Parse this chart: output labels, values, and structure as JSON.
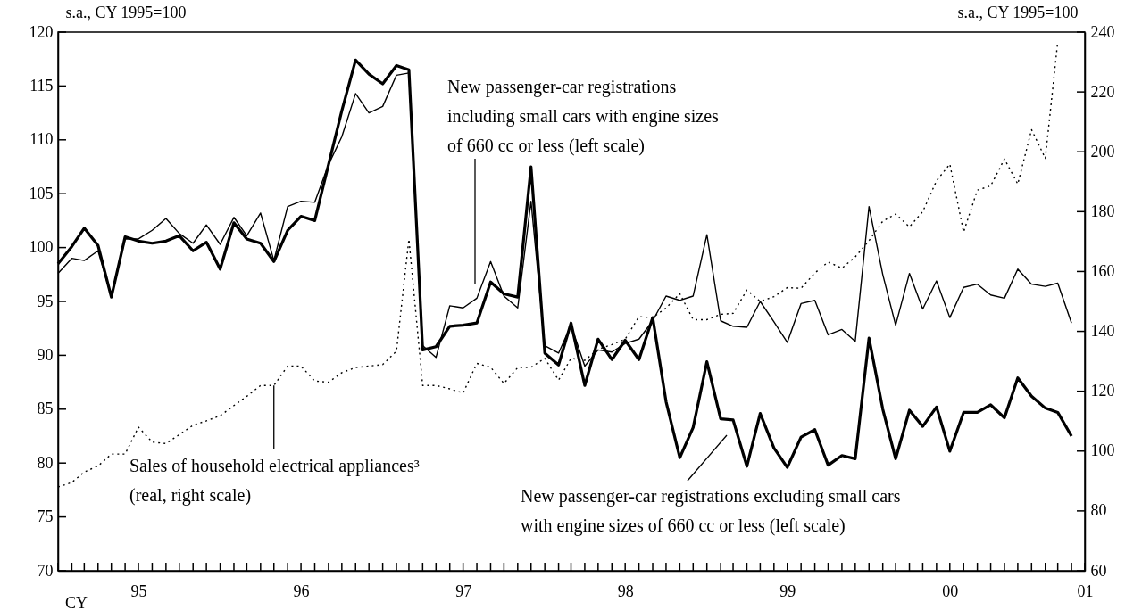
{
  "chart_data": {
    "type": "line",
    "xlabel": "CY",
    "ylabel": "s.a., CY 1995=100",
    "y2label": "s.a., CY 1995=100",
    "x": [
      "1995-01",
      "1995-02",
      "1995-03",
      "1995-04",
      "1995-05",
      "1995-06",
      "1995-07",
      "1995-08",
      "1995-09",
      "1995-10",
      "1995-11",
      "1995-12",
      "1996-01",
      "1996-02",
      "1996-03",
      "1996-04",
      "1996-05",
      "1996-06",
      "1996-07",
      "1996-08",
      "1996-09",
      "1996-10",
      "1996-11",
      "1996-12",
      "1997-01",
      "1997-02",
      "1997-03",
      "1997-04",
      "1997-05",
      "1997-06",
      "1997-07",
      "1997-08",
      "1997-09",
      "1997-10",
      "1997-11",
      "1997-12",
      "1998-01",
      "1998-02",
      "1998-03",
      "1998-04",
      "1998-05",
      "1998-06",
      "1998-07",
      "1998-08",
      "1998-09",
      "1998-10",
      "1998-11",
      "1998-12",
      "1999-01",
      "1999-02",
      "1999-03",
      "1999-04",
      "1999-05",
      "1999-06",
      "1999-07",
      "1999-08",
      "1999-09",
      "1999-10",
      "1999-11",
      "1999-12",
      "2000-01",
      "2000-02",
      "2000-03",
      "2000-04",
      "2000-05",
      "2000-06",
      "2000-07",
      "2000-08",
      "2000-09",
      "2000-10",
      "2000-11",
      "2000-12",
      "2001-01",
      "2001-02",
      "2001-03",
      "2001-04"
    ],
    "series": [
      {
        "color": "#000000",
        "values": [
          98.5,
          100.1,
          101.8,
          100.2,
          95.4,
          101.0,
          100.6,
          100.4,
          100.6,
          101.1,
          99.7,
          100.5,
          98.0,
          102.3,
          100.8,
          100.4,
          98.7,
          101.6,
          102.9,
          102.5,
          107.7,
          112.7,
          117.4,
          116.1,
          115.2,
          116.9,
          116.5,
          90.5,
          90.8,
          92.7,
          92.8,
          93.0,
          96.8,
          95.7,
          95.4,
          107.5,
          90.2,
          89.1,
          93.0,
          87.2,
          91.5,
          89.6,
          91.4,
          89.6,
          93.5,
          85.7,
          80.5,
          83.3,
          89.4,
          84.1,
          84.0,
          79.7,
          84.6,
          81.4,
          79.6,
          82.4,
          83.1,
          79.8,
          80.7,
          80.4,
          91.6,
          85.0,
          80.4,
          84.9,
          83.4,
          85.2,
          81.1,
          84.7,
          84.7,
          85.4,
          84.2,
          87.9,
          86.2,
          85.1,
          84.7,
          82.5
        ]
      },
      {
        "color": "#000000",
        "values": [
          97.6,
          99.0,
          98.8,
          99.7,
          95.4,
          100.8,
          100.8,
          101.6,
          102.7,
          101.3,
          100.4,
          102.1,
          100.3,
          102.8,
          101.1,
          103.2,
          98.8,
          103.8,
          104.3,
          104.2,
          107.7,
          110.3,
          114.3,
          112.5,
          113.1,
          116.0,
          116.2,
          90.9,
          89.8,
          94.6,
          94.4,
          95.3,
          98.7,
          95.5,
          94.4,
          104.3,
          90.9,
          90.2,
          92.8,
          89.0,
          90.5,
          90.3,
          91.1,
          91.5,
          93.2,
          95.5,
          95.1,
          95.5,
          101.2,
          93.2,
          92.7,
          92.6,
          95.0,
          93.1,
          91.2,
          94.8,
          95.1,
          91.9,
          92.4,
          91.3,
          103.8,
          97.5,
          92.8,
          97.6,
          94.3,
          96.9,
          93.5,
          96.3,
          96.6,
          95.6,
          95.3,
          98.0,
          96.6,
          96.4,
          96.7,
          93.0
        ]
      },
      {
        "color": "#000000",
        "axis": "y2",
        "line_style": "dotted",
        "values": [
          88,
          89.5,
          93,
          95,
          99,
          99,
          108,
          103,
          102.5,
          105.5,
          108.6,
          110.1,
          111.8,
          115.2,
          118.3,
          121.9,
          121.9,
          128.4,
          128.4,
          123.4,
          123.0,
          126.2,
          127.9,
          128.4,
          128.9,
          133.4,
          170.8,
          121.9,
          121.9,
          120.8,
          119.4,
          129.3,
          128.0,
          122.6,
          127.9,
          128.0,
          131.0,
          123.7,
          131.0,
          130.3,
          134.0,
          135.6,
          137.4,
          144.9,
          144.6,
          147.8,
          152.6,
          143.9,
          143.9,
          145.7,
          146.0,
          153.8,
          150.0,
          151.6,
          154.6,
          154.4,
          159.5,
          163.2,
          161.1,
          164.9,
          170.3,
          176.8,
          179.2,
          174.9,
          180.0,
          190.3,
          195.9,
          173.2,
          187.2,
          188.6,
          197.6,
          189.2,
          207.4,
          197.8,
          236.8,
          null
        ]
      }
    ],
    "xlim": [
      "1995-01",
      "2001-05"
    ],
    "xticks": [
      {
        "value": "1995-01",
        "label": null
      },
      {
        "value": "1995-02",
        "label": null
      },
      {
        "value": "1995-03",
        "label": null
      },
      {
        "value": "1995-04",
        "label": null
      },
      {
        "value": "1995-05",
        "label": null
      },
      {
        "value": "1995-06",
        "label": null
      },
      {
        "value": "1995-07",
        "label": "95"
      },
      {
        "value": "1995-08",
        "label": null
      },
      {
        "value": "1995-09",
        "label": null
      },
      {
        "value": "1995-10",
        "label": null
      },
      {
        "value": "1995-11",
        "label": null
      },
      {
        "value": "1995-12",
        "label": null
      },
      {
        "value": "1996-01",
        "label": null
      },
      {
        "value": "1996-02",
        "label": null
      },
      {
        "value": "1996-03",
        "label": null
      },
      {
        "value": "1996-04",
        "label": null
      },
      {
        "value": "1996-05",
        "label": null
      },
      {
        "value": "1996-06",
        "label": null
      },
      {
        "value": "1996-07",
        "label": "96"
      },
      {
        "value": "1996-08",
        "label": null
      },
      {
        "value": "1996-09",
        "label": null
      },
      {
        "value": "1996-10",
        "label": null
      },
      {
        "value": "1996-11",
        "label": null
      },
      {
        "value": "1996-12",
        "label": null
      },
      {
        "value": "1997-01",
        "label": null
      },
      {
        "value": "1997-02",
        "label": null
      },
      {
        "value": "1997-03",
        "label": null
      },
      {
        "value": "1997-04",
        "label": null
      },
      {
        "value": "1997-05",
        "label": null
      },
      {
        "value": "1997-06",
        "label": null
      },
      {
        "value": "1997-07",
        "label": "97"
      },
      {
        "value": "1997-08",
        "label": null
      },
      {
        "value": "1997-09",
        "label": null
      },
      {
        "value": "1997-10",
        "label": null
      },
      {
        "value": "1997-11",
        "label": null
      },
      {
        "value": "1997-12",
        "label": null
      },
      {
        "value": "1998-01",
        "label": null
      },
      {
        "value": "1998-02",
        "label": null
      },
      {
        "value": "1998-03",
        "label": null
      },
      {
        "value": "1998-04",
        "label": null
      },
      {
        "value": "1998-05",
        "label": null
      },
      {
        "value": "1998-06",
        "label": null
      },
      {
        "value": "1998-07",
        "label": "98"
      },
      {
        "value": "1998-08",
        "label": null
      },
      {
        "value": "1998-09",
        "label": null
      },
      {
        "value": "1998-10",
        "label": null
      },
      {
        "value": "1998-11",
        "label": null
      },
      {
        "value": "1998-12",
        "label": null
      },
      {
        "value": "1999-01",
        "label": null
      },
      {
        "value": "1999-02",
        "label": null
      },
      {
        "value": "1999-03",
        "label": null
      },
      {
        "value": "1999-04",
        "label": null
      },
      {
        "value": "1999-05",
        "label": null
      },
      {
        "value": "1999-06",
        "label": null
      },
      {
        "value": "1999-07",
        "label": "99"
      },
      {
        "value": "1999-08",
        "label": null
      },
      {
        "value": "1999-09",
        "label": null
      },
      {
        "value": "1999-10",
        "label": null
      },
      {
        "value": "1999-11",
        "label": null
      },
      {
        "value": "1999-12",
        "label": null
      },
      {
        "value": "2000-01",
        "label": null
      },
      {
        "value": "2000-02",
        "label": null
      },
      {
        "value": "2000-03",
        "label": null
      },
      {
        "value": "2000-04",
        "label": null
      },
      {
        "value": "2000-05",
        "label": null
      },
      {
        "value": "2000-06",
        "label": null
      },
      {
        "value": "2000-07",
        "label": "00"
      },
      {
        "value": "2000-08",
        "label": null
      },
      {
        "value": "2000-09",
        "label": null
      },
      {
        "value": "2000-10",
        "label": null
      },
      {
        "value": "2000-11",
        "label": null
      },
      {
        "value": "2000-12",
        "label": null
      },
      {
        "value": "2001-01",
        "label": null
      },
      {
        "value": "2001-02",
        "label": null
      },
      {
        "value": "2001-03",
        "label": null
      },
      {
        "value": "2001-04",
        "label": null
      },
      {
        "value": "2001-05",
        "label": "01"
      }
    ],
    "ylim": [
      70,
      120
    ],
    "yticks": [
      70,
      75,
      80,
      85,
      90,
      95,
      100,
      105,
      110,
      115,
      120
    ],
    "y2lim": [
      60,
      240
    ],
    "y2ticks": [
      60,
      80,
      100,
      120,
      140,
      160,
      180,
      200,
      220,
      240
    ],
    "annotations": [
      "New passenger-car registrations including small cars with engine sizes of 660 cc or less (left scale)",
      {
        "text": "Sales of household electrical appliances³ (real, right scale)",
        "x": "1996-05",
        "y": 87.2
      },
      "New passenger-car registrations excluding small cars with engine sizes of 660 cc or less (left scale)"
    ]
  }
}
